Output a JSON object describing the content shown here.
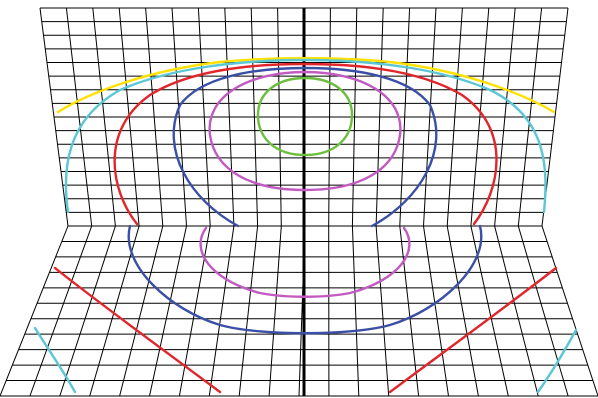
{
  "figure": {
    "description_visible_text": "",
    "colors": {
      "grid": "#000000",
      "axis": "#000000",
      "background": "#ffffff",
      "contour_yellow": "#ffe100",
      "contour_cyan": "#5bc7d6",
      "contour_red": "#e0262b",
      "contour_blue": "#3a4fa6",
      "contour_magenta": "#c15ac1",
      "contour_green": "#6cbf3d"
    },
    "contour_order_outer_to_inner": [
      "yellow",
      "cyan",
      "red",
      "blue",
      "magenta",
      "green"
    ]
  }
}
